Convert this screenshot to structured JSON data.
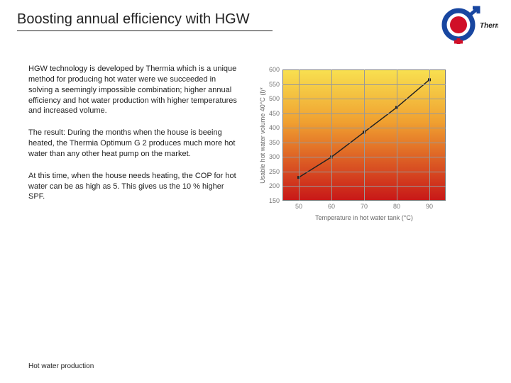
{
  "header": {
    "title": "Boosting annual efficiency with HGW",
    "brand_text": "Thermia"
  },
  "paragraphs": {
    "p1": "HGW technology is developed by Thermia which is a unique method for producing hot water were we succeeded in solving a seemingly impossible combination; higher annual efficiency and hot water production with higher temperatures and increased volume.",
    "p2": "The result: During the months when the house is beeing heated, the Thermia Optimum G 2 produces much more hot water than any other heat pump on the market.",
    "p3": "At this time, when the house needs heating, the COP for hot water can be as high as 5. This gives us the 10 % higher SPF."
  },
  "footer": {
    "label": "Hot water production"
  },
  "chart": {
    "type": "line",
    "xlabel": "Temperature in hot water tank (°C)",
    "ylabel": "Usable hot water volume 40°C (l)*",
    "x_values": [
      50,
      60,
      70,
      80,
      90
    ],
    "y_values": [
      230,
      300,
      385,
      470,
      565
    ],
    "xlim": [
      45,
      95
    ],
    "ylim": [
      150,
      600
    ],
    "y_ticks": [
      150,
      200,
      250,
      300,
      350,
      400,
      450,
      500,
      550,
      600
    ],
    "x_ticks": [
      50,
      60,
      70,
      80,
      90
    ],
    "line_color": "#222222",
    "line_width": 1.5,
    "marker_color": "#222222",
    "marker_size": 4,
    "grid_color": "#999999",
    "gradient_top": "#f8e050",
    "gradient_bottom": "#c81818",
    "label_fontsize": 9,
    "tick_fontsize": 9
  },
  "logo": {
    "outer_ring": "#1846a0",
    "inner_circle": "#d01028",
    "arrow": "#1846a0"
  }
}
